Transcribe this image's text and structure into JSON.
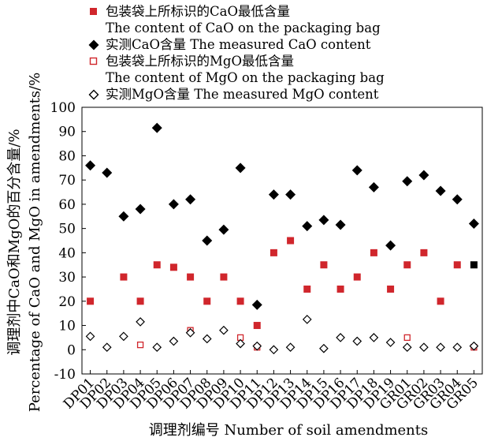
{
  "chart_data": {
    "type": "scatter",
    "title": "",
    "xlabel": "调理剂编号 Number of soil amendments",
    "ylabel_line1": "调理剂中CaO和MgO的百分含量/%",
    "ylabel_line2": "Percentage of CaO and MgO in amendments/%",
    "ylim": [
      -10,
      100
    ],
    "yticks": [
      "-10",
      "0",
      "10",
      "20",
      "30",
      "40",
      "50",
      "60",
      "70",
      "80",
      "90",
      "100"
    ],
    "grid": false,
    "legend_position": "top-left",
    "categories": [
      "DP01",
      "DP02",
      "DP03",
      "DP04",
      "DP05",
      "DP06",
      "DP07",
      "DP08",
      "DP09",
      "DP10",
      "DP11",
      "DP12",
      "DP13",
      "DP14",
      "DP15",
      "DP16",
      "DP17",
      "DP18",
      "DP19",
      "GR01",
      "GR02",
      "GR03",
      "GR04",
      "GR05"
    ],
    "series": [
      {
        "key": "cao_label",
        "name_cn": "包装袋上所标识的CaO最低含量",
        "name_en": "The content of CaO on the packaging bag",
        "marker": "square-filled",
        "color": "#d0262c",
        "values": [
          20,
          null,
          30,
          20,
          35,
          34,
          30,
          20,
          30,
          20,
          10,
          40,
          45,
          25,
          35,
          25,
          30,
          40,
          25,
          35,
          40,
          20,
          35,
          35
        ]
      },
      {
        "key": "cao_measured",
        "name_cn": "实测CaO含量",
        "name_en": "The measured  CaO content",
        "marker": "diamond-filled",
        "color": "#000000",
        "values": [
          76,
          73,
          55,
          58,
          91.5,
          60,
          62,
          45,
          49.5,
          75,
          18.5,
          64,
          64,
          51,
          53.5,
          51.5,
          74,
          67,
          43,
          69.5,
          72,
          65.5,
          62,
          52
        ]
      },
      {
        "key": "mgo_label",
        "name_cn": "包装袋上所标识的MgO最低含量",
        "name_en": "The content of MgO on the packaging bag",
        "marker": "square-open",
        "color": "#d0262c",
        "values": [
          null,
          null,
          null,
          2,
          null,
          null,
          8,
          null,
          null,
          5,
          1,
          null,
          null,
          null,
          null,
          null,
          null,
          null,
          null,
          5,
          null,
          null,
          null,
          1
        ]
      },
      {
        "key": "mgo_measured",
        "name_cn": "实测MgO含量",
        "name_en": "The measured  MgO content",
        "marker": "diamond-open",
        "color": "#000000",
        "values": [
          5.5,
          1,
          5.5,
          11.5,
          1,
          3.5,
          7,
          4.5,
          8,
          2.5,
          1.5,
          0,
          1,
          12.5,
          0.5,
          5,
          3.5,
          5,
          3,
          1,
          1,
          1,
          1,
          1.5
        ]
      }
    ],
    "highlight": {
      "category": "GR05",
      "series": "cao_label",
      "color": "#000000"
    }
  }
}
